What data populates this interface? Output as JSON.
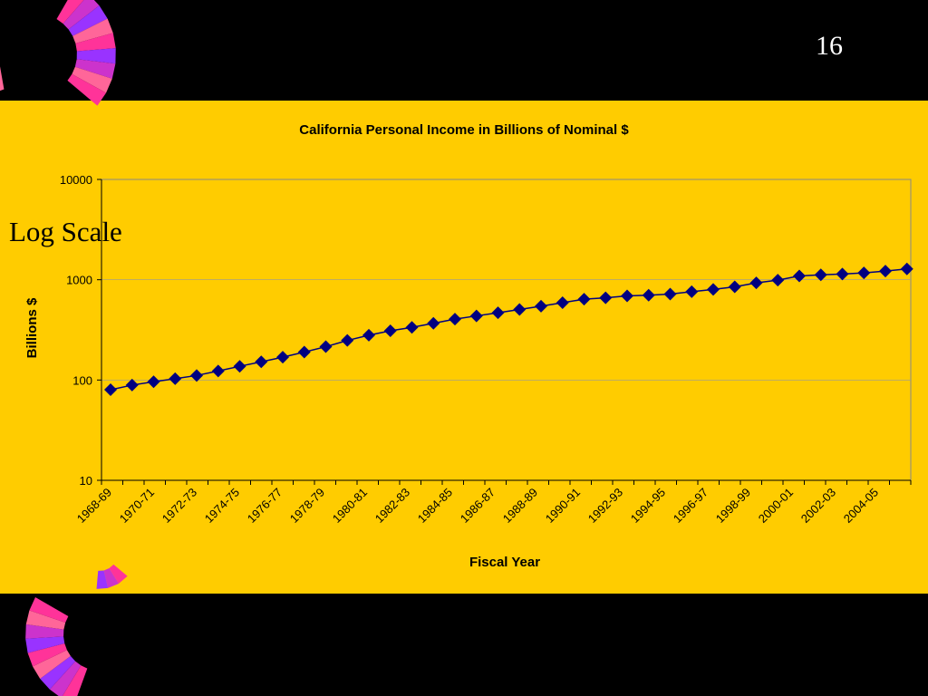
{
  "slide": {
    "number": "16",
    "side_label": "Log Scale"
  },
  "colors": {
    "band": "#FFCC00",
    "series": "#000080",
    "background": "#000000"
  },
  "decoration": {
    "icon": "striped-fan-icon"
  },
  "chart_data": {
    "type": "line",
    "title": "California Personal Income in Billions of Nominal $",
    "xlabel": "Fiscal Year",
    "ylabel": "Billions $",
    "yscale": "log",
    "ylim": [
      10,
      10000
    ],
    "yticks": [
      "10",
      "100",
      "1000",
      "10000"
    ],
    "grid": true,
    "legend": "none",
    "categories": [
      "1968-69",
      "1969-70",
      "1970-71",
      "1971-72",
      "1972-73",
      "1973-74",
      "1974-75",
      "1975-76",
      "1976-77",
      "1977-78",
      "1978-79",
      "1979-80",
      "1980-81",
      "1981-82",
      "1982-83",
      "1983-84",
      "1984-85",
      "1985-86",
      "1986-87",
      "1987-88",
      "1988-89",
      "1989-90",
      "1990-91",
      "1991-92",
      "1992-93",
      "1993-94",
      "1994-95",
      "1995-96",
      "1996-97",
      "1997-98",
      "1998-99",
      "1999-00",
      "2000-01",
      "2001-02",
      "2002-03",
      "2003-04",
      "2004-05",
      "2005-06"
    ],
    "x_tick_labels": [
      "1968-69",
      "",
      "1970-71",
      "",
      "1972-73",
      "",
      "1974-75",
      "",
      "1976-77",
      "",
      "1978-79",
      "",
      "1980-81",
      "",
      "1982-83",
      "",
      "1984-85",
      "",
      "1986-87",
      "",
      "1988-89",
      "",
      "1990-91",
      "",
      "1992-93",
      "",
      "1994-95",
      "",
      "1996-97",
      "",
      "1998-99",
      "",
      "2000-01",
      "",
      "2002-03",
      "",
      "2004-05",
      ""
    ],
    "values": [
      80,
      89,
      96,
      103,
      111,
      123,
      137,
      152,
      169,
      190,
      215,
      248,
      280,
      310,
      335,
      368,
      405,
      436,
      468,
      505,
      545,
      590,
      640,
      660,
      690,
      700,
      720,
      760,
      800,
      850,
      930,
      990,
      1090,
      1120,
      1140,
      1170,
      1220,
      1280
    ],
    "marker": "diamond"
  }
}
